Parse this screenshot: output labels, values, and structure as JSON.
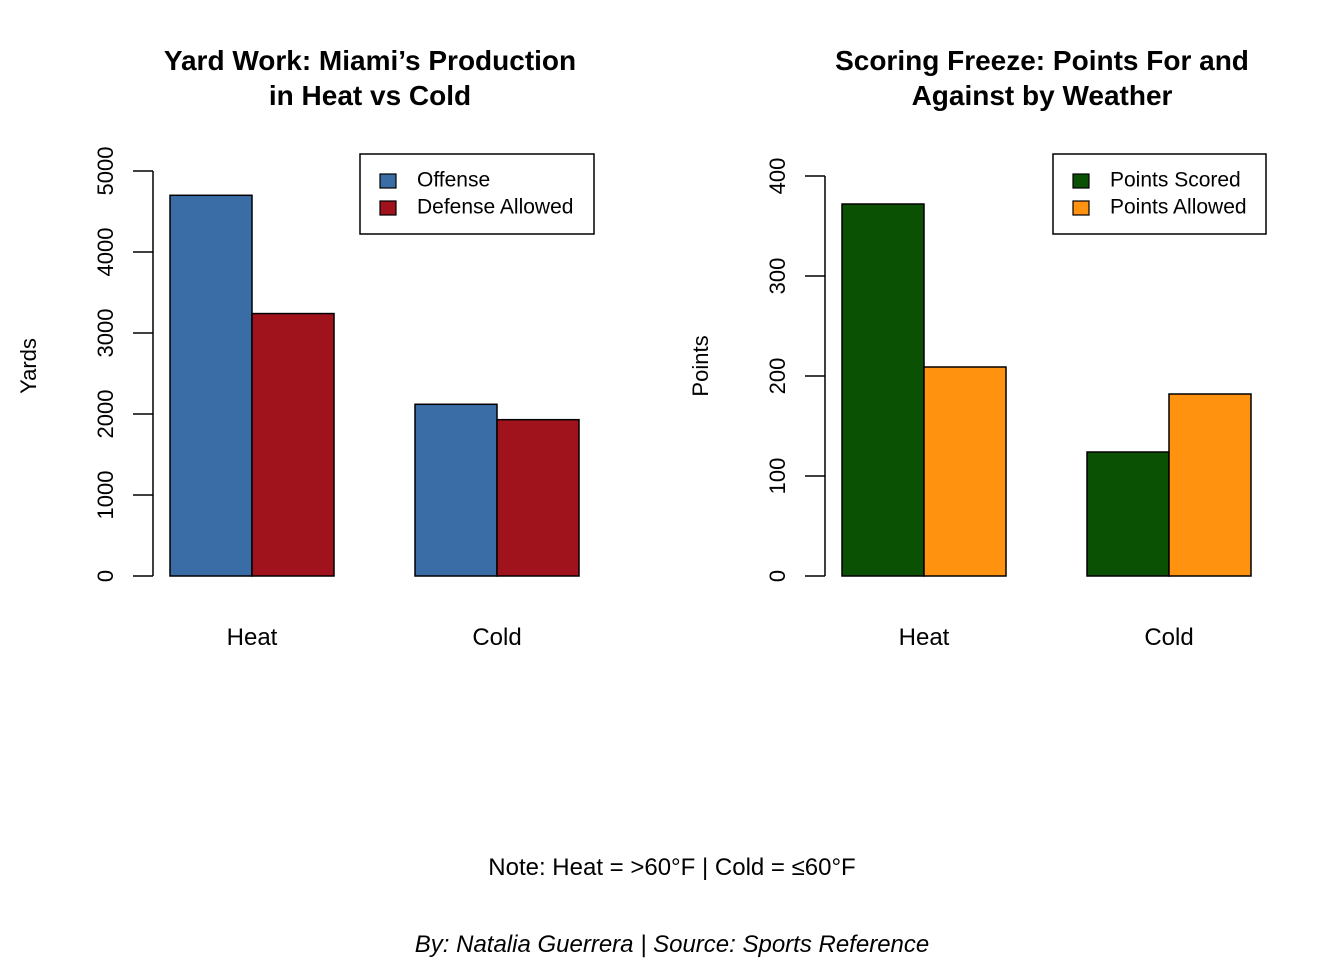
{
  "chart_data": [
    {
      "type": "bar",
      "title_lines": [
        "Yard Work: Miami’s Production",
        "in Heat vs Cold"
      ],
      "xlabel": "",
      "ylabel": "Yards",
      "categories": [
        "Heat",
        "Cold"
      ],
      "series": [
        {
          "name": "Offense",
          "values": [
            4700,
            2120
          ],
          "color": "#3A6DA6"
        },
        {
          "name": "Defense Allowed",
          "values": [
            3240,
            1930
          ],
          "color": "#A0131C"
        }
      ],
      "ylim": [
        0,
        5000
      ],
      "yticks": [
        0,
        1000,
        2000,
        3000,
        4000,
        5000
      ],
      "grid": false,
      "legend": "top-right"
    },
    {
      "type": "bar",
      "title_lines": [
        "Scoring Freeze: Points For and",
        "Against by Weather"
      ],
      "xlabel": "",
      "ylabel": "Points",
      "categories": [
        "Heat",
        "Cold"
      ],
      "series": [
        {
          "name": "Points Scored",
          "values": [
            372,
            124
          ],
          "color": "#0B5104"
        },
        {
          "name": "Points Allowed",
          "values": [
            209,
            182
          ],
          "color": "#FF930F"
        }
      ],
      "ylim": [
        0,
        400
      ],
      "yticks": [
        0,
        100,
        200,
        300,
        400
      ],
      "grid": false,
      "legend": "top-right"
    }
  ],
  "footer": {
    "note": "Note: Heat = >60°F | Cold = ≤60°F",
    "byline": "By: Natalia Guerrera | Source: Sports Reference"
  }
}
